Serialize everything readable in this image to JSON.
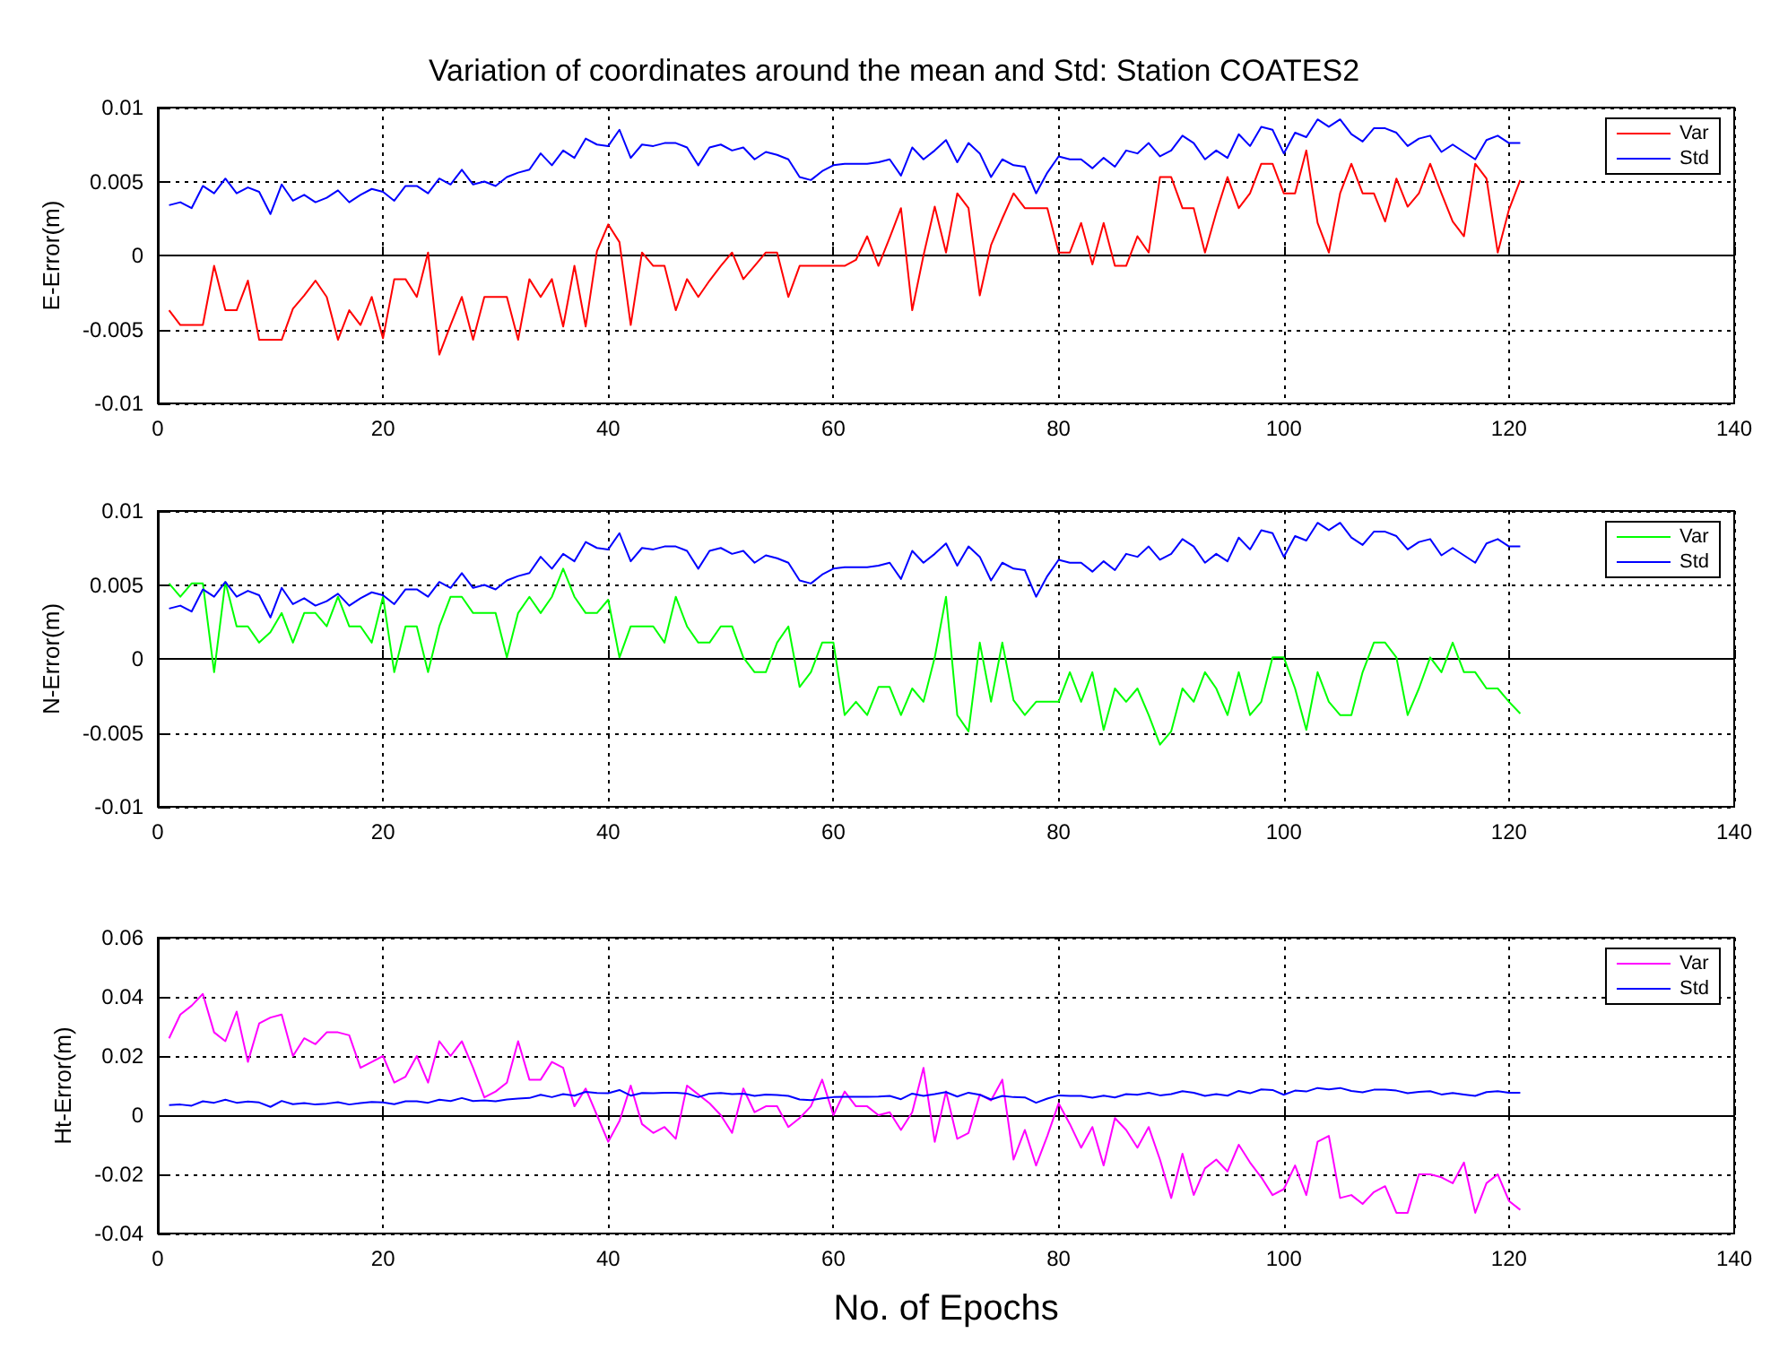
{
  "chart_data": [
    {
      "type": "line",
      "title": "Variation of coordinates around the mean and Std: Station COATES2",
      "ylabel": "E-Error(m)",
      "xlim": [
        0,
        140
      ],
      "xticks": [
        0,
        20,
        40,
        60,
        80,
        100,
        120,
        140
      ],
      "ylim": [
        -0.01,
        0.01
      ],
      "yticks": [
        -0.01,
        -0.005,
        0,
        0.005,
        0.01
      ],
      "grid": true,
      "legend": "top right",
      "x": [
        1,
        2,
        3,
        4,
        5,
        6,
        7,
        8,
        9,
        10,
        11,
        12,
        13,
        14,
        15,
        16,
        17,
        18,
        19,
        20,
        21,
        22,
        23,
        24,
        25,
        26,
        27,
        28,
        29,
        30,
        31,
        32,
        33,
        34,
        35,
        36,
        37,
        38,
        39,
        40,
        41,
        42,
        43,
        44,
        45,
        46,
        47,
        48,
        49,
        50,
        51,
        52,
        53,
        54,
        55,
        56,
        57,
        58,
        59,
        60,
        61,
        62,
        63,
        64,
        65,
        66,
        67,
        68,
        69,
        70,
        71,
        72,
        73,
        74,
        75,
        76,
        77,
        78,
        79,
        80,
        81,
        82,
        83,
        84,
        85,
        86,
        87,
        88,
        89,
        90,
        91,
        92,
        93,
        94,
        95,
        96,
        97,
        98,
        99,
        100,
        101,
        102,
        103,
        104,
        105,
        106,
        107,
        108,
        109,
        110,
        111,
        112,
        113,
        114,
        115,
        116,
        117,
        118,
        119,
        120,
        121
      ],
      "series": [
        {
          "name": "Var",
          "color": "#ff0000",
          "values": [
            -0.0037,
            -0.0047,
            -0.0047,
            -0.0047,
            -0.0007,
            -0.0037,
            -0.0037,
            -0.0017,
            -0.0057,
            -0.0057,
            -0.0057,
            -0.0036,
            -0.0027,
            -0.0017,
            -0.0028,
            -0.0057,
            -0.0037,
            -0.0047,
            -0.0028,
            -0.0056,
            -0.0016,
            -0.0016,
            -0.0028,
            0.0002,
            -0.0067,
            -0.0047,
            -0.0028,
            -0.0057,
            -0.0028,
            -0.0028,
            -0.0028,
            -0.0057,
            -0.0016,
            -0.0028,
            -0.0016,
            -0.0048,
            -0.0007,
            -0.0048,
            0.0003,
            0.0021,
            0.0009,
            -0.0047,
            0.0002,
            -0.0007,
            -0.0007,
            -0.0037,
            -0.0016,
            -0.0028,
            -0.0017,
            -0.0007,
            0.0002,
            -0.0016,
            -0.0007,
            0.0002,
            0.0002,
            -0.0028,
            -0.0007,
            -0.0007,
            -0.0007,
            -0.0007,
            -0.0007,
            -0.0003,
            0.0013,
            -0.0007,
            0.0012,
            0.0032,
            -0.0037,
            0.0,
            0.0033,
            0.0002,
            0.0042,
            0.0032,
            -0.0027,
            0.0007,
            0.0025,
            0.0042,
            0.0032,
            0.0032,
            0.0032,
            0.0002,
            0.0002,
            0.0022,
            -0.0006,
            0.0022,
            -0.0007,
            -0.0007,
            0.0013,
            0.0002,
            0.0053,
            0.0053,
            0.0032,
            0.0032,
            0.0002,
            0.0029,
            0.0053,
            0.0032,
            0.0042,
            0.0062,
            0.0062,
            0.0042,
            0.0042,
            0.0071,
            0.0022,
            0.0002,
            0.0042,
            0.0062,
            0.0042,
            0.0042,
            0.0023,
            0.0052,
            0.0033,
            0.0042,
            0.0062,
            0.0042,
            0.0023,
            0.0013,
            0.0062,
            0.0052,
            0.0002,
            0.0031,
            0.0051
          ]
        },
        {
          "name": "Std",
          "color": "#0000ff",
          "values": [
            0.0034,
            0.0036,
            0.0032,
            0.0047,
            0.0042,
            0.0052,
            0.0042,
            0.0046,
            0.0043,
            0.0028,
            0.0048,
            0.0037,
            0.0041,
            0.0036,
            0.0039,
            0.0044,
            0.0036,
            0.0041,
            0.0045,
            0.0043,
            0.0037,
            0.0047,
            0.0047,
            0.0042,
            0.0052,
            0.0048,
            0.0058,
            0.0048,
            0.005,
            0.0047,
            0.0053,
            0.0056,
            0.0058,
            0.0069,
            0.0061,
            0.0071,
            0.0066,
            0.0079,
            0.0075,
            0.0074,
            0.0085,
            0.0066,
            0.0075,
            0.0074,
            0.0076,
            0.0076,
            0.0073,
            0.0061,
            0.0073,
            0.0075,
            0.0071,
            0.0073,
            0.0065,
            0.007,
            0.0068,
            0.0065,
            0.0053,
            0.0051,
            0.0057,
            0.0061,
            0.0062,
            0.0062,
            0.0062,
            0.0063,
            0.0065,
            0.0054,
            0.0073,
            0.0065,
            0.0071,
            0.0078,
            0.0063,
            0.0076,
            0.0069,
            0.0053,
            0.0065,
            0.0061,
            0.006,
            0.0042,
            0.0056,
            0.0067,
            0.0065,
            0.0065,
            0.0059,
            0.0066,
            0.006,
            0.0071,
            0.0069,
            0.0076,
            0.0067,
            0.0071,
            0.0081,
            0.0076,
            0.0065,
            0.0071,
            0.0066,
            0.0082,
            0.0074,
            0.0087,
            0.0085,
            0.0069,
            0.0083,
            0.008,
            0.0092,
            0.0087,
            0.0092,
            0.0082,
            0.0077,
            0.0086,
            0.0086,
            0.0083,
            0.0074,
            0.0079,
            0.0081,
            0.007,
            0.0075,
            0.007,
            0.0065,
            0.0078,
            0.0081,
            0.0076,
            0.0076
          ]
        }
      ]
    },
    {
      "type": "line",
      "ylabel": "N-Error(m)",
      "xlim": [
        0,
        140
      ],
      "xticks": [
        0,
        20,
        40,
        60,
        80,
        100,
        120,
        140
      ],
      "ylim": [
        -0.01,
        0.01
      ],
      "yticks": [
        -0.01,
        -0.005,
        0,
        0.005,
        0.01
      ],
      "grid": true,
      "legend": "top right",
      "x": [
        1,
        2,
        3,
        4,
        5,
        6,
        7,
        8,
        9,
        10,
        11,
        12,
        13,
        14,
        15,
        16,
        17,
        18,
        19,
        20,
        21,
        22,
        23,
        24,
        25,
        26,
        27,
        28,
        29,
        30,
        31,
        32,
        33,
        34,
        35,
        36,
        37,
        38,
        39,
        40,
        41,
        42,
        43,
        44,
        45,
        46,
        47,
        48,
        49,
        50,
        51,
        52,
        53,
        54,
        55,
        56,
        57,
        58,
        59,
        60,
        61,
        62,
        63,
        64,
        65,
        66,
        67,
        68,
        69,
        70,
        71,
        72,
        73,
        74,
        75,
        76,
        77,
        78,
        79,
        80,
        81,
        82,
        83,
        84,
        85,
        86,
        87,
        88,
        89,
        90,
        91,
        92,
        93,
        94,
        95,
        96,
        97,
        98,
        99,
        100,
        101,
        102,
        103,
        104,
        105,
        106,
        107,
        108,
        109,
        110,
        111,
        112,
        113,
        114,
        115,
        116,
        117,
        118,
        119,
        120,
        121
      ],
      "series": [
        {
          "name": "Var",
          "color": "#00ff00",
          "values": [
            0.0051,
            0.0042,
            0.0051,
            0.0051,
            -0.0009,
            0.0052,
            0.0022,
            0.0022,
            0.0011,
            0.0018,
            0.0031,
            0.0011,
            0.0031,
            0.0031,
            0.0022,
            0.0042,
            0.0022,
            0.0022,
            0.0011,
            0.0042,
            -0.0009,
            0.0022,
            0.0022,
            -0.0009,
            0.0022,
            0.0042,
            0.0042,
            0.0031,
            0.0031,
            0.0031,
            0.0001,
            0.0031,
            0.0042,
            0.0031,
            0.0042,
            0.0061,
            0.0042,
            0.0031,
            0.0031,
            0.004,
            0.0001,
            0.0022,
            0.0022,
            0.0022,
            0.0011,
            0.0042,
            0.0022,
            0.0011,
            0.0011,
            0.0022,
            0.0022,
            0.0001,
            -0.0009,
            -0.0009,
            0.0011,
            0.0022,
            -0.0019,
            -0.0009,
            0.0011,
            0.0011,
            -0.0038,
            -0.0029,
            -0.0038,
            -0.0019,
            -0.0019,
            -0.0038,
            -0.002,
            -0.0029,
            0.0001,
            0.0042,
            -0.0038,
            -0.0049,
            0.0011,
            -0.0029,
            0.0011,
            -0.0028,
            -0.0038,
            -0.0029,
            -0.0029,
            -0.0029,
            -0.0009,
            -0.0029,
            -0.0009,
            -0.0048,
            -0.002,
            -0.0029,
            -0.002,
            -0.0038,
            -0.0058,
            -0.0049,
            -0.002,
            -0.0029,
            -0.0009,
            -0.002,
            -0.0038,
            -0.0009,
            -0.0038,
            -0.0029,
            0.0001,
            0.0001,
            -0.002,
            -0.0048,
            -0.0009,
            -0.0029,
            -0.0038,
            -0.0038,
            -0.0009,
            0.0011,
            0.0011,
            0.0001,
            -0.0038,
            -0.002,
            0.0001,
            -0.0009,
            0.0011,
            -0.0009,
            -0.0009,
            -0.002,
            -0.002,
            -0.0029,
            -0.0037
          ]
        },
        {
          "name": "Std",
          "color": "#0000ff",
          "values": [
            0.0034,
            0.0036,
            0.0032,
            0.0047,
            0.0042,
            0.0052,
            0.0042,
            0.0046,
            0.0043,
            0.0028,
            0.0048,
            0.0037,
            0.0041,
            0.0036,
            0.0039,
            0.0044,
            0.0036,
            0.0041,
            0.0045,
            0.0043,
            0.0037,
            0.0047,
            0.0047,
            0.0042,
            0.0052,
            0.0048,
            0.0058,
            0.0048,
            0.005,
            0.0047,
            0.0053,
            0.0056,
            0.0058,
            0.0069,
            0.0061,
            0.0071,
            0.0066,
            0.0079,
            0.0075,
            0.0074,
            0.0085,
            0.0066,
            0.0075,
            0.0074,
            0.0076,
            0.0076,
            0.0073,
            0.0061,
            0.0073,
            0.0075,
            0.0071,
            0.0073,
            0.0065,
            0.007,
            0.0068,
            0.0065,
            0.0053,
            0.0051,
            0.0057,
            0.0061,
            0.0062,
            0.0062,
            0.0062,
            0.0063,
            0.0065,
            0.0054,
            0.0073,
            0.0065,
            0.0071,
            0.0078,
            0.0063,
            0.0076,
            0.0069,
            0.0053,
            0.0065,
            0.0061,
            0.006,
            0.0042,
            0.0056,
            0.0067,
            0.0065,
            0.0065,
            0.0059,
            0.0066,
            0.006,
            0.0071,
            0.0069,
            0.0076,
            0.0067,
            0.0071,
            0.0081,
            0.0076,
            0.0065,
            0.0071,
            0.0066,
            0.0082,
            0.0074,
            0.0087,
            0.0085,
            0.0069,
            0.0083,
            0.008,
            0.0092,
            0.0087,
            0.0092,
            0.0082,
            0.0077,
            0.0086,
            0.0086,
            0.0083,
            0.0074,
            0.0079,
            0.0081,
            0.007,
            0.0075,
            0.007,
            0.0065,
            0.0078,
            0.0081,
            0.0076,
            0.0076
          ]
        }
      ]
    },
    {
      "type": "line",
      "ylabel": "Ht-Error(m)",
      "xlabel": "No. of Epochs",
      "xlim": [
        0,
        140
      ],
      "xticks": [
        0,
        20,
        40,
        60,
        80,
        100,
        120,
        140
      ],
      "ylim": [
        -0.04,
        0.06
      ],
      "yticks": [
        -0.04,
        -0.02,
        0,
        0.02,
        0.04,
        0.06
      ],
      "grid": true,
      "legend": "top right",
      "x": [
        1,
        2,
        3,
        4,
        5,
        6,
        7,
        8,
        9,
        10,
        11,
        12,
        13,
        14,
        15,
        16,
        17,
        18,
        19,
        20,
        21,
        22,
        23,
        24,
        25,
        26,
        27,
        28,
        29,
        30,
        31,
        32,
        33,
        34,
        35,
        36,
        37,
        38,
        39,
        40,
        41,
        42,
        43,
        44,
        45,
        46,
        47,
        48,
        49,
        50,
        51,
        52,
        53,
        54,
        55,
        56,
        57,
        58,
        59,
        60,
        61,
        62,
        63,
        64,
        65,
        66,
        67,
        68,
        69,
        70,
        71,
        72,
        73,
        74,
        75,
        76,
        77,
        78,
        79,
        80,
        81,
        82,
        83,
        84,
        85,
        86,
        87,
        88,
        89,
        90,
        91,
        92,
        93,
        94,
        95,
        96,
        97,
        98,
        99,
        100,
        101,
        102,
        103,
        104,
        105,
        106,
        107,
        108,
        109,
        110,
        111,
        112,
        113,
        114,
        115,
        116,
        117,
        118,
        119,
        120,
        121
      ],
      "series": [
        {
          "name": "Var",
          "color": "#ff00ff",
          "values": [
            0.026,
            0.034,
            0.037,
            0.041,
            0.028,
            0.025,
            0.035,
            0.018,
            0.031,
            0.033,
            0.034,
            0.02,
            0.026,
            0.024,
            0.028,
            0.028,
            0.027,
            0.016,
            0.018,
            0.02,
            0.011,
            0.013,
            0.02,
            0.011,
            0.025,
            0.02,
            0.025,
            0.016,
            0.006,
            0.008,
            0.011,
            0.025,
            0.012,
            0.012,
            0.018,
            0.016,
            0.003,
            0.009,
            0.0,
            -0.009,
            -0.002,
            0.01,
            -0.003,
            -0.006,
            -0.004,
            -0.008,
            0.01,
            0.007,
            0.004,
            0.0,
            -0.006,
            0.009,
            0.001,
            0.003,
            0.003,
            -0.004,
            -0.001,
            0.003,
            0.012,
            0.0,
            0.008,
            0.003,
            0.003,
            0.0,
            0.001,
            -0.005,
            0.001,
            0.016,
            -0.009,
            0.008,
            -0.008,
            -0.006,
            0.007,
            0.005,
            0.012,
            -0.015,
            -0.005,
            -0.017,
            -0.007,
            0.004,
            -0.003,
            -0.011,
            -0.004,
            -0.017,
            -0.001,
            -0.005,
            -0.011,
            -0.004,
            -0.015,
            -0.028,
            -0.013,
            -0.027,
            -0.018,
            -0.015,
            -0.019,
            -0.01,
            -0.016,
            -0.021,
            -0.027,
            -0.025,
            -0.017,
            -0.027,
            -0.009,
            -0.007,
            -0.028,
            -0.027,
            -0.03,
            -0.026,
            -0.024,
            -0.033,
            -0.033,
            -0.02,
            -0.02,
            -0.021,
            -0.023,
            -0.016,
            -0.033,
            -0.023,
            -0.02,
            -0.029,
            -0.032
          ]
        },
        {
          "name": "Std",
          "color": "#0000ff",
          "values": [
            0.0034,
            0.0036,
            0.0032,
            0.0047,
            0.0042,
            0.0052,
            0.0042,
            0.0046,
            0.0043,
            0.0028,
            0.0048,
            0.0037,
            0.0041,
            0.0036,
            0.0039,
            0.0044,
            0.0036,
            0.0041,
            0.0045,
            0.0043,
            0.0037,
            0.0047,
            0.0047,
            0.0042,
            0.0052,
            0.0048,
            0.0058,
            0.0048,
            0.005,
            0.0047,
            0.0053,
            0.0056,
            0.0058,
            0.0069,
            0.0061,
            0.0071,
            0.0066,
            0.0079,
            0.0075,
            0.0074,
            0.0085,
            0.0066,
            0.0075,
            0.0074,
            0.0076,
            0.0076,
            0.0073,
            0.0061,
            0.0073,
            0.0075,
            0.0071,
            0.0073,
            0.0065,
            0.007,
            0.0068,
            0.0065,
            0.0053,
            0.0051,
            0.0057,
            0.0061,
            0.0062,
            0.0062,
            0.0062,
            0.0063,
            0.0065,
            0.0054,
            0.0073,
            0.0065,
            0.0071,
            0.0078,
            0.0063,
            0.0076,
            0.0069,
            0.0053,
            0.0065,
            0.0061,
            0.006,
            0.0042,
            0.0056,
            0.0067,
            0.0065,
            0.0065,
            0.0059,
            0.0066,
            0.006,
            0.0071,
            0.0069,
            0.0076,
            0.0067,
            0.0071,
            0.0081,
            0.0076,
            0.0065,
            0.0071,
            0.0066,
            0.0082,
            0.0074,
            0.0087,
            0.0085,
            0.0069,
            0.0083,
            0.008,
            0.0092,
            0.0087,
            0.0092,
            0.0082,
            0.0077,
            0.0086,
            0.0086,
            0.0083,
            0.0074,
            0.0079,
            0.0081,
            0.007,
            0.0075,
            0.007,
            0.0065,
            0.0078,
            0.0081,
            0.0076,
            0.0076
          ]
        }
      ]
    }
  ]
}
